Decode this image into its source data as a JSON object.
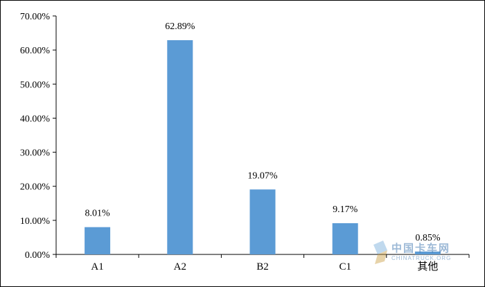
{
  "chart_data": {
    "type": "bar",
    "title": "",
    "xlabel": "",
    "ylabel": "",
    "categories": [
      "A1",
      "A2",
      "B2",
      "C1",
      "其他"
    ],
    "values": [
      8.01,
      62.89,
      19.07,
      9.17,
      0.85
    ],
    "value_labels": [
      "8.01%",
      "62.89%",
      "19.07%",
      "9.17%",
      "0.85%"
    ],
    "ylim": [
      0,
      70
    ],
    "yticks": [
      0,
      10,
      20,
      30,
      40,
      50,
      60,
      70
    ],
    "ytick_labels": [
      "0.00%",
      "10.00%",
      "20.00%",
      "30.00%",
      "40.00%",
      "50.00%",
      "60.00%",
      "70.00%"
    ],
    "grid": false,
    "legend": "none",
    "bar_color": "#5b9bd5"
  },
  "watermark": {
    "name": "中国卡车网",
    "sub": "CHINATRUCK.ORG"
  }
}
